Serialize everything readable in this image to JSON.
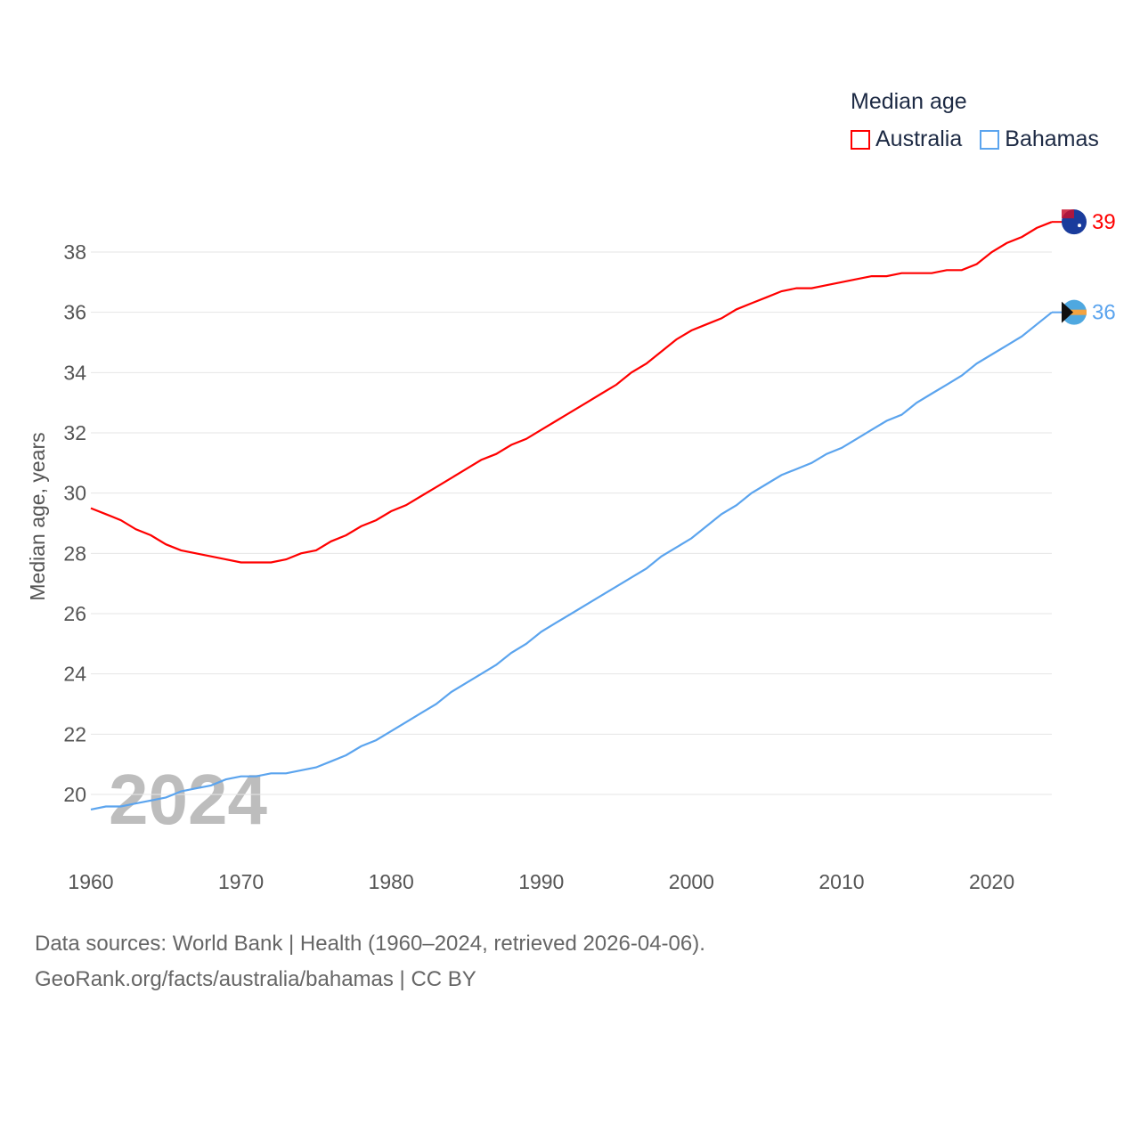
{
  "chart_data": {
    "type": "line",
    "title": "Median age",
    "xlabel": "",
    "ylabel": "Median age, years",
    "xlim": [
      1960,
      2024
    ],
    "ylim": [
      19,
      39.5
    ],
    "x_ticks": [
      1960,
      1970,
      1980,
      1990,
      2000,
      2010,
      2020
    ],
    "y_ticks": [
      20,
      22,
      24,
      26,
      28,
      30,
      32,
      34,
      36,
      38
    ],
    "grid": true,
    "legend_position": "top-right",
    "year_watermark": "2024",
    "x": [
      1960,
      1961,
      1962,
      1963,
      1964,
      1965,
      1966,
      1967,
      1968,
      1969,
      1970,
      1971,
      1972,
      1973,
      1974,
      1975,
      1976,
      1977,
      1978,
      1979,
      1980,
      1981,
      1982,
      1983,
      1984,
      1985,
      1986,
      1987,
      1988,
      1989,
      1990,
      1991,
      1992,
      1993,
      1994,
      1995,
      1996,
      1997,
      1998,
      1999,
      2000,
      2001,
      2002,
      2003,
      2004,
      2005,
      2006,
      2007,
      2008,
      2009,
      2010,
      2011,
      2012,
      2013,
      2014,
      2015,
      2016,
      2017,
      2018,
      2019,
      2020,
      2021,
      2022,
      2023,
      2024
    ],
    "series": [
      {
        "name": "Australia",
        "color": "#ff0000",
        "end_label": "39",
        "values": [
          29.5,
          29.3,
          29.1,
          28.8,
          28.6,
          28.3,
          28.1,
          28.0,
          27.9,
          27.8,
          27.7,
          27.7,
          27.7,
          27.8,
          28.0,
          28.1,
          28.4,
          28.6,
          28.9,
          29.1,
          29.4,
          29.6,
          29.9,
          30.2,
          30.5,
          30.8,
          31.1,
          31.3,
          31.6,
          31.8,
          32.1,
          32.4,
          32.7,
          33.0,
          33.3,
          33.6,
          34.0,
          34.3,
          34.7,
          35.1,
          35.4,
          35.6,
          35.8,
          36.1,
          36.3,
          36.5,
          36.7,
          36.8,
          36.8,
          36.9,
          37.0,
          37.1,
          37.2,
          37.2,
          37.3,
          37.3,
          37.3,
          37.4,
          37.4,
          37.6,
          38.0,
          38.3,
          38.5,
          38.8,
          39.0
        ]
      },
      {
        "name": "Bahamas",
        "color": "#5ba4ee",
        "end_label": "36",
        "values": [
          19.5,
          19.6,
          19.6,
          19.7,
          19.8,
          19.9,
          20.1,
          20.2,
          20.3,
          20.5,
          20.6,
          20.6,
          20.7,
          20.7,
          20.8,
          20.9,
          21.1,
          21.3,
          21.6,
          21.8,
          22.1,
          22.4,
          22.7,
          23.0,
          23.4,
          23.7,
          24.0,
          24.3,
          24.7,
          25.0,
          25.4,
          25.7,
          26.0,
          26.3,
          26.6,
          26.9,
          27.2,
          27.5,
          27.9,
          28.2,
          28.5,
          28.9,
          29.3,
          29.6,
          30.0,
          30.3,
          30.6,
          30.8,
          31.0,
          31.3,
          31.5,
          31.8,
          32.1,
          32.4,
          32.6,
          33.0,
          33.3,
          33.6,
          33.9,
          34.3,
          34.6,
          34.9,
          35.2,
          35.6,
          36.0
        ]
      }
    ]
  },
  "footer": {
    "line1": "Data sources: World Bank | Health (1960–2024, retrieved 2026-04-06).",
    "line2": "GeoRank.org/facts/australia/bahamas | CC BY"
  }
}
